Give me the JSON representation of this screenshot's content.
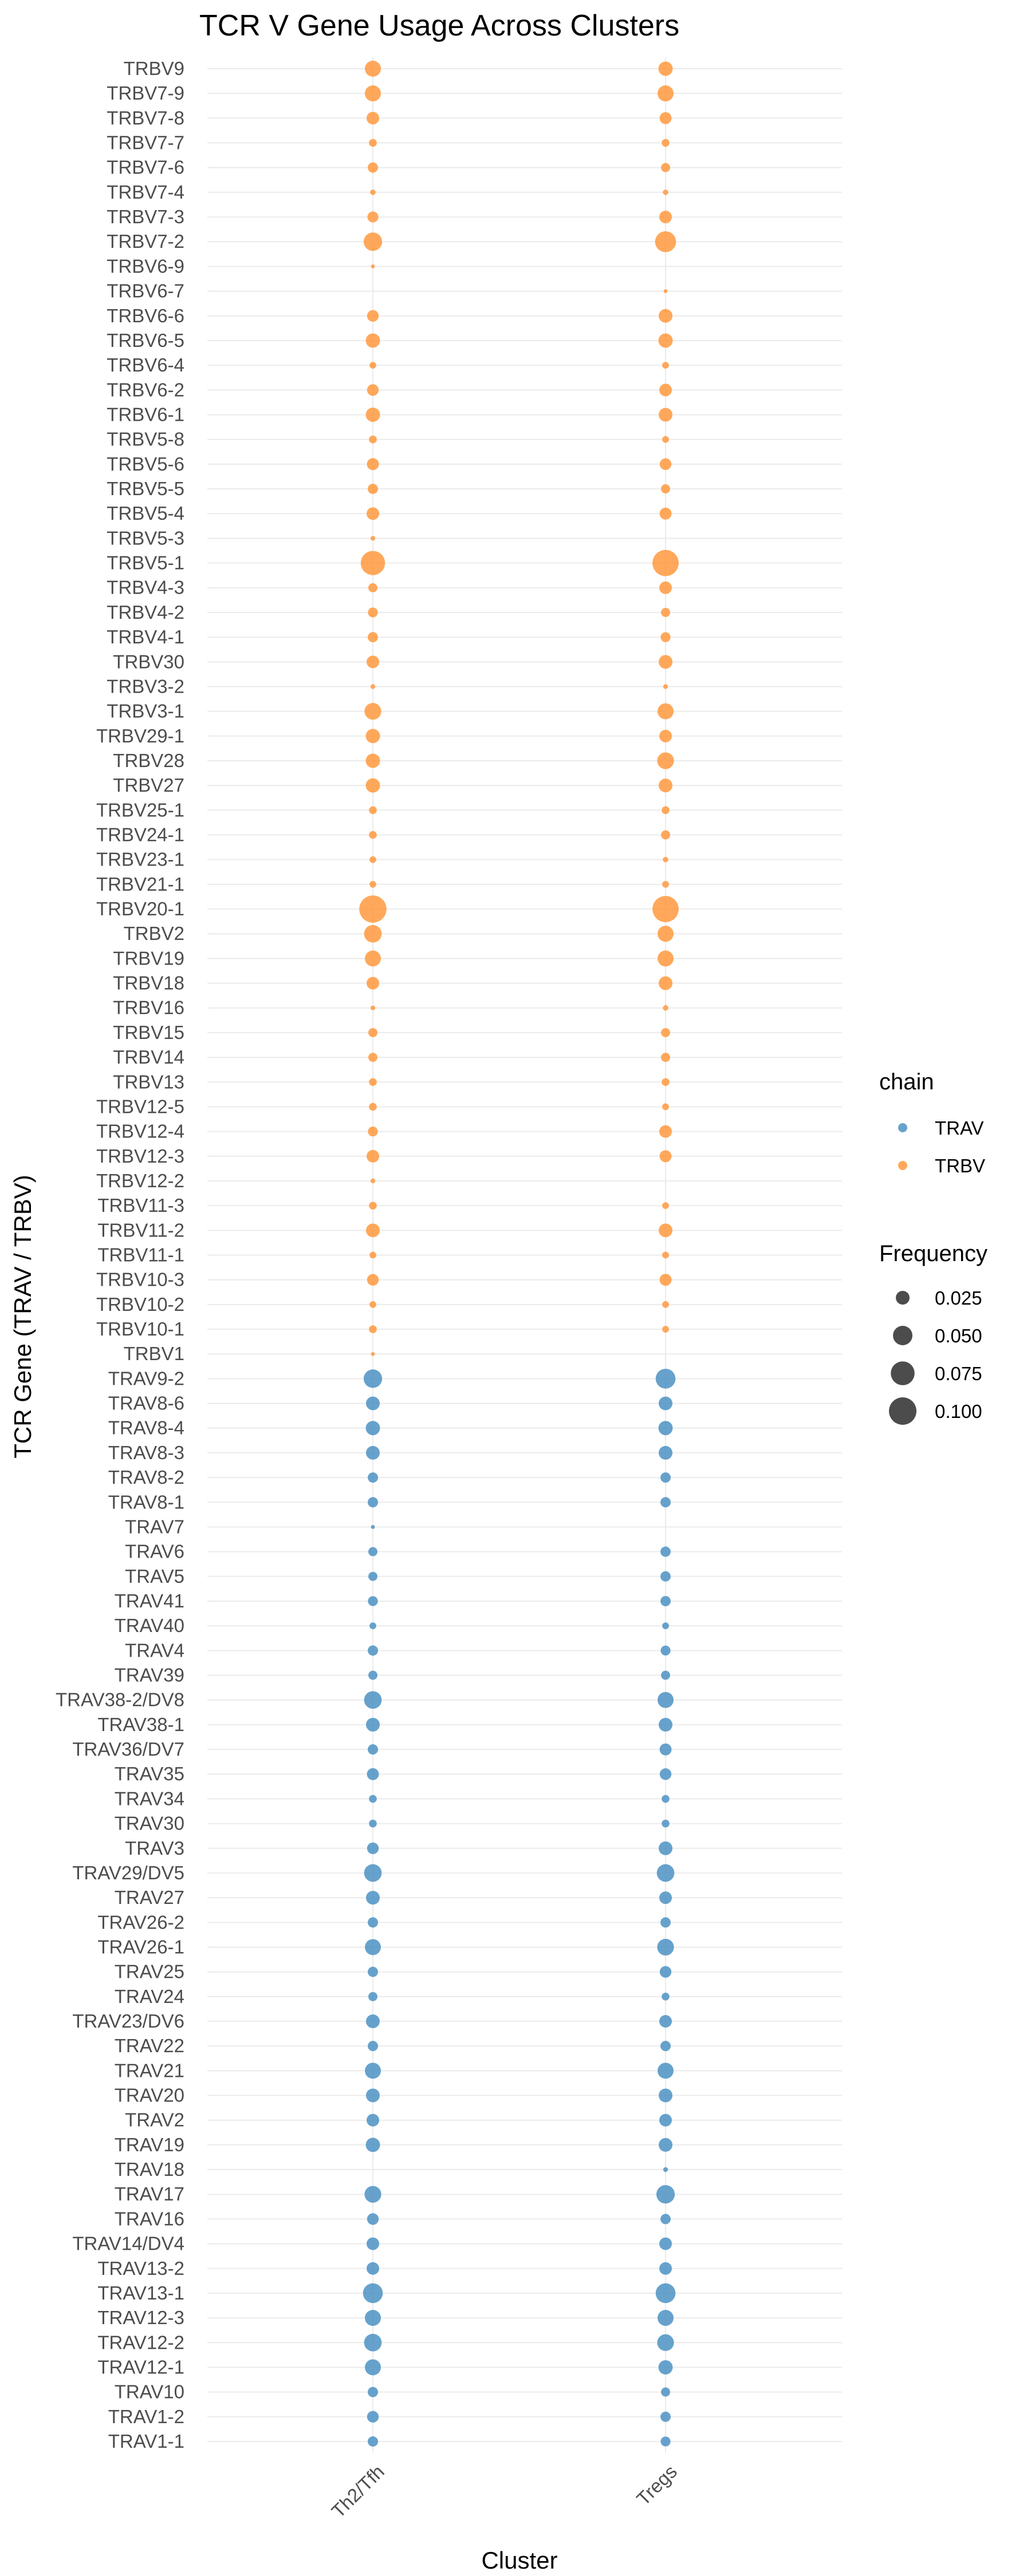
{
  "chart_data": {
    "type": "scatter",
    "title": "TCR V Gene Usage Across Clusters",
    "xlabel": "Cluster",
    "ylabel": "TCR Gene (TRAV / TRBV)",
    "clusters": [
      "Th2/Tfh",
      "Tregs"
    ],
    "colors": {
      "TRAV": "#4c92c3",
      "TRBV": "#ff993e"
    },
    "size_legend": {
      "title": "Frequency",
      "breaks": [
        0.025,
        0.05,
        0.075,
        0.1
      ],
      "labels": [
        "0.025",
        "0.050",
        "0.075",
        "0.100"
      ]
    },
    "chain_legend": {
      "title": "chain",
      "entries": [
        "TRAV",
        "TRBV"
      ]
    },
    "genes": [
      {
        "gene": "TRBV9",
        "chain": "TRBV",
        "freq": [
          0.034,
          0.027
        ]
      },
      {
        "gene": "TRBV7-9",
        "chain": "TRBV",
        "freq": [
          0.034,
          0.034
        ]
      },
      {
        "gene": "TRBV7-8",
        "chain": "TRBV",
        "freq": [
          0.021,
          0.019
        ]
      },
      {
        "gene": "TRBV7-7",
        "chain": "TRBV",
        "freq": [
          0.008,
          0.008
        ]
      },
      {
        "gene": "TRBV7-6",
        "chain": "TRBV",
        "freq": [
          0.014,
          0.011
        ]
      },
      {
        "gene": "TRBV7-4",
        "chain": "TRBV",
        "freq": [
          0.004,
          0.004
        ]
      },
      {
        "gene": "TRBV7-3",
        "chain": "TRBV",
        "freq": [
          0.016,
          0.021
        ]
      },
      {
        "gene": "TRBV7-2",
        "chain": "TRBV",
        "freq": [
          0.045,
          0.058
        ]
      },
      {
        "gene": "TRBV6-9",
        "chain": "TRBV",
        "freq": [
          0.002,
          null
        ]
      },
      {
        "gene": "TRBV6-7",
        "chain": "TRBV",
        "freq": [
          null,
          0.002
        ]
      },
      {
        "gene": "TRBV6-6",
        "chain": "TRBV",
        "freq": [
          0.018,
          0.025
        ]
      },
      {
        "gene": "TRBV6-5",
        "chain": "TRBV",
        "freq": [
          0.027,
          0.027
        ]
      },
      {
        "gene": "TRBV6-4",
        "chain": "TRBV",
        "freq": [
          0.006,
          0.006
        ]
      },
      {
        "gene": "TRBV6-2",
        "chain": "TRBV",
        "freq": [
          0.018,
          0.021
        ]
      },
      {
        "gene": "TRBV6-1",
        "chain": "TRBV",
        "freq": [
          0.027,
          0.025
        ]
      },
      {
        "gene": "TRBV5-8",
        "chain": "TRBV",
        "freq": [
          0.008,
          0.006
        ]
      },
      {
        "gene": "TRBV5-6",
        "chain": "TRBV",
        "freq": [
          0.019,
          0.018
        ]
      },
      {
        "gene": "TRBV5-5",
        "chain": "TRBV",
        "freq": [
          0.014,
          0.011
        ]
      },
      {
        "gene": "TRBV5-4",
        "chain": "TRBV",
        "freq": [
          0.021,
          0.019
        ]
      },
      {
        "gene": "TRBV5-3",
        "chain": "TRBV",
        "freq": [
          0.003,
          null
        ]
      },
      {
        "gene": "TRBV5-1",
        "chain": "TRBV",
        "freq": [
          0.078,
          0.091
        ]
      },
      {
        "gene": "TRBV4-3",
        "chain": "TRBV",
        "freq": [
          0.011,
          0.021
        ]
      },
      {
        "gene": "TRBV4-2",
        "chain": "TRBV",
        "freq": [
          0.013,
          0.011
        ]
      },
      {
        "gene": "TRBV4-1",
        "chain": "TRBV",
        "freq": [
          0.014,
          0.013
        ]
      },
      {
        "gene": "TRBV30",
        "chain": "TRBV",
        "freq": [
          0.021,
          0.025
        ]
      },
      {
        "gene": "TRBV3-2",
        "chain": "TRBV",
        "freq": [
          0.003,
          0.003
        ]
      },
      {
        "gene": "TRBV3-1",
        "chain": "TRBV",
        "freq": [
          0.037,
          0.034
        ]
      },
      {
        "gene": "TRBV29-1",
        "chain": "TRBV",
        "freq": [
          0.027,
          0.021
        ]
      },
      {
        "gene": "TRBV28",
        "chain": "TRBV",
        "freq": [
          0.027,
          0.037
        ]
      },
      {
        "gene": "TRBV27",
        "chain": "TRBV",
        "freq": [
          0.027,
          0.025
        ]
      },
      {
        "gene": "TRBV25-1",
        "chain": "TRBV",
        "freq": [
          0.008,
          0.008
        ]
      },
      {
        "gene": "TRBV24-1",
        "chain": "TRBV",
        "freq": [
          0.008,
          0.011
        ]
      },
      {
        "gene": "TRBV23-1",
        "chain": "TRBV",
        "freq": [
          0.006,
          0.004
        ]
      },
      {
        "gene": "TRBV21-1",
        "chain": "TRBV",
        "freq": [
          0.006,
          0.006
        ]
      },
      {
        "gene": "TRBV20-1",
        "chain": "TRBV",
        "freq": [
          0.098,
          0.091
        ]
      },
      {
        "gene": "TRBV2",
        "chain": "TRBV",
        "freq": [
          0.041,
          0.034
        ]
      },
      {
        "gene": "TRBV19",
        "chain": "TRBV",
        "freq": [
          0.034,
          0.034
        ]
      },
      {
        "gene": "TRBV18",
        "chain": "TRBV",
        "freq": [
          0.021,
          0.025
        ]
      },
      {
        "gene": "TRBV16",
        "chain": "TRBV",
        "freq": [
          0.003,
          0.004
        ]
      },
      {
        "gene": "TRBV15",
        "chain": "TRBV",
        "freq": [
          0.011,
          0.011
        ]
      },
      {
        "gene": "TRBV14",
        "chain": "TRBV",
        "freq": [
          0.011,
          0.011
        ]
      },
      {
        "gene": "TRBV13",
        "chain": "TRBV",
        "freq": [
          0.008,
          0.008
        ]
      },
      {
        "gene": "TRBV12-5",
        "chain": "TRBV",
        "freq": [
          0.008,
          0.006
        ]
      },
      {
        "gene": "TRBV12-4",
        "chain": "TRBV",
        "freq": [
          0.013,
          0.021
        ]
      },
      {
        "gene": "TRBV12-3",
        "chain": "TRBV",
        "freq": [
          0.021,
          0.019
        ]
      },
      {
        "gene": "TRBV12-2",
        "chain": "TRBV",
        "freq": [
          0.003,
          null
        ]
      },
      {
        "gene": "TRBV11-3",
        "chain": "TRBV",
        "freq": [
          0.008,
          0.006
        ]
      },
      {
        "gene": "TRBV11-2",
        "chain": "TRBV",
        "freq": [
          0.025,
          0.025
        ]
      },
      {
        "gene": "TRBV11-1",
        "chain": "TRBV",
        "freq": [
          0.006,
          0.006
        ]
      },
      {
        "gene": "TRBV10-3",
        "chain": "TRBV",
        "freq": [
          0.018,
          0.019
        ]
      },
      {
        "gene": "TRBV10-2",
        "chain": "TRBV",
        "freq": [
          0.006,
          0.006
        ]
      },
      {
        "gene": "TRBV10-1",
        "chain": "TRBV",
        "freq": [
          0.008,
          0.006
        ]
      },
      {
        "gene": "TRBV1",
        "chain": "TRBV",
        "freq": [
          0.002,
          null
        ]
      },
      {
        "gene": "TRAV9-2",
        "chain": "TRAV",
        "freq": [
          0.045,
          0.052
        ]
      },
      {
        "gene": "TRAV8-6",
        "chain": "TRAV",
        "freq": [
          0.025,
          0.025
        ]
      },
      {
        "gene": "TRAV8-4",
        "chain": "TRAV",
        "freq": [
          0.027,
          0.027
        ]
      },
      {
        "gene": "TRAV8-3",
        "chain": "TRAV",
        "freq": [
          0.025,
          0.025
        ]
      },
      {
        "gene": "TRAV8-2",
        "chain": "TRAV",
        "freq": [
          0.014,
          0.014
        ]
      },
      {
        "gene": "TRAV8-1",
        "chain": "TRAV",
        "freq": [
          0.014,
          0.014
        ]
      },
      {
        "gene": "TRAV7",
        "chain": "TRAV",
        "freq": [
          0.002,
          null
        ]
      },
      {
        "gene": "TRAV6",
        "chain": "TRAV",
        "freq": [
          0.011,
          0.014
        ]
      },
      {
        "gene": "TRAV5",
        "chain": "TRAV",
        "freq": [
          0.011,
          0.014
        ]
      },
      {
        "gene": "TRAV41",
        "chain": "TRAV",
        "freq": [
          0.013,
          0.014
        ]
      },
      {
        "gene": "TRAV40",
        "chain": "TRAV",
        "freq": [
          0.006,
          0.006
        ]
      },
      {
        "gene": "TRAV4",
        "chain": "TRAV",
        "freq": [
          0.014,
          0.013
        ]
      },
      {
        "gene": "TRAV39",
        "chain": "TRAV",
        "freq": [
          0.011,
          0.011
        ]
      },
      {
        "gene": "TRAV38-2/DV8",
        "chain": "TRAV",
        "freq": [
          0.041,
          0.034
        ]
      },
      {
        "gene": "TRAV38-1",
        "chain": "TRAV",
        "freq": [
          0.025,
          0.025
        ]
      },
      {
        "gene": "TRAV36/DV7",
        "chain": "TRAV",
        "freq": [
          0.014,
          0.019
        ]
      },
      {
        "gene": "TRAV35",
        "chain": "TRAV",
        "freq": [
          0.019,
          0.018
        ]
      },
      {
        "gene": "TRAV34",
        "chain": "TRAV",
        "freq": [
          0.008,
          0.008
        ]
      },
      {
        "gene": "TRAV30",
        "chain": "TRAV",
        "freq": [
          0.008,
          0.008
        ]
      },
      {
        "gene": "TRAV3",
        "chain": "TRAV",
        "freq": [
          0.018,
          0.025
        ]
      },
      {
        "gene": "TRAV29/DV5",
        "chain": "TRAV",
        "freq": [
          0.041,
          0.041
        ]
      },
      {
        "gene": "TRAV27",
        "chain": "TRAV",
        "freq": [
          0.025,
          0.021
        ]
      },
      {
        "gene": "TRAV26-2",
        "chain": "TRAV",
        "freq": [
          0.014,
          0.014
        ]
      },
      {
        "gene": "TRAV26-1",
        "chain": "TRAV",
        "freq": [
          0.034,
          0.037
        ]
      },
      {
        "gene": "TRAV25",
        "chain": "TRAV",
        "freq": [
          0.014,
          0.018
        ]
      },
      {
        "gene": "TRAV24",
        "chain": "TRAV",
        "freq": [
          0.011,
          0.008
        ]
      },
      {
        "gene": "TRAV23/DV6",
        "chain": "TRAV",
        "freq": [
          0.025,
          0.021
        ]
      },
      {
        "gene": "TRAV22",
        "chain": "TRAV",
        "freq": [
          0.014,
          0.014
        ]
      },
      {
        "gene": "TRAV21",
        "chain": "TRAV",
        "freq": [
          0.034,
          0.034
        ]
      },
      {
        "gene": "TRAV20",
        "chain": "TRAV",
        "freq": [
          0.025,
          0.025
        ]
      },
      {
        "gene": "TRAV2",
        "chain": "TRAV",
        "freq": [
          0.021,
          0.021
        ]
      },
      {
        "gene": "TRAV19",
        "chain": "TRAV",
        "freq": [
          0.027,
          0.025
        ]
      },
      {
        "gene": "TRAV18",
        "chain": "TRAV",
        "freq": [
          null,
          0.003
        ]
      },
      {
        "gene": "TRAV17",
        "chain": "TRAV",
        "freq": [
          0.037,
          0.045
        ]
      },
      {
        "gene": "TRAV16",
        "chain": "TRAV",
        "freq": [
          0.018,
          0.014
        ]
      },
      {
        "gene": "TRAV14/DV4",
        "chain": "TRAV",
        "freq": [
          0.021,
          0.021
        ]
      },
      {
        "gene": "TRAV13-2",
        "chain": "TRAV",
        "freq": [
          0.021,
          0.021
        ]
      },
      {
        "gene": "TRAV13-1",
        "chain": "TRAV",
        "freq": [
          0.052,
          0.052
        ]
      },
      {
        "gene": "TRAV12-3",
        "chain": "TRAV",
        "freq": [
          0.034,
          0.034
        ]
      },
      {
        "gene": "TRAV12-2",
        "chain": "TRAV",
        "freq": [
          0.041,
          0.037
        ]
      },
      {
        "gene": "TRAV12-1",
        "chain": "TRAV",
        "freq": [
          0.034,
          0.027
        ]
      },
      {
        "gene": "TRAV10",
        "chain": "TRAV",
        "freq": [
          0.014,
          0.011
        ]
      },
      {
        "gene": "TRAV1-2",
        "chain": "TRAV",
        "freq": [
          0.018,
          0.014
        ]
      },
      {
        "gene": "TRAV1-1",
        "chain": "TRAV",
        "freq": [
          0.014,
          0.013
        ]
      }
    ]
  }
}
